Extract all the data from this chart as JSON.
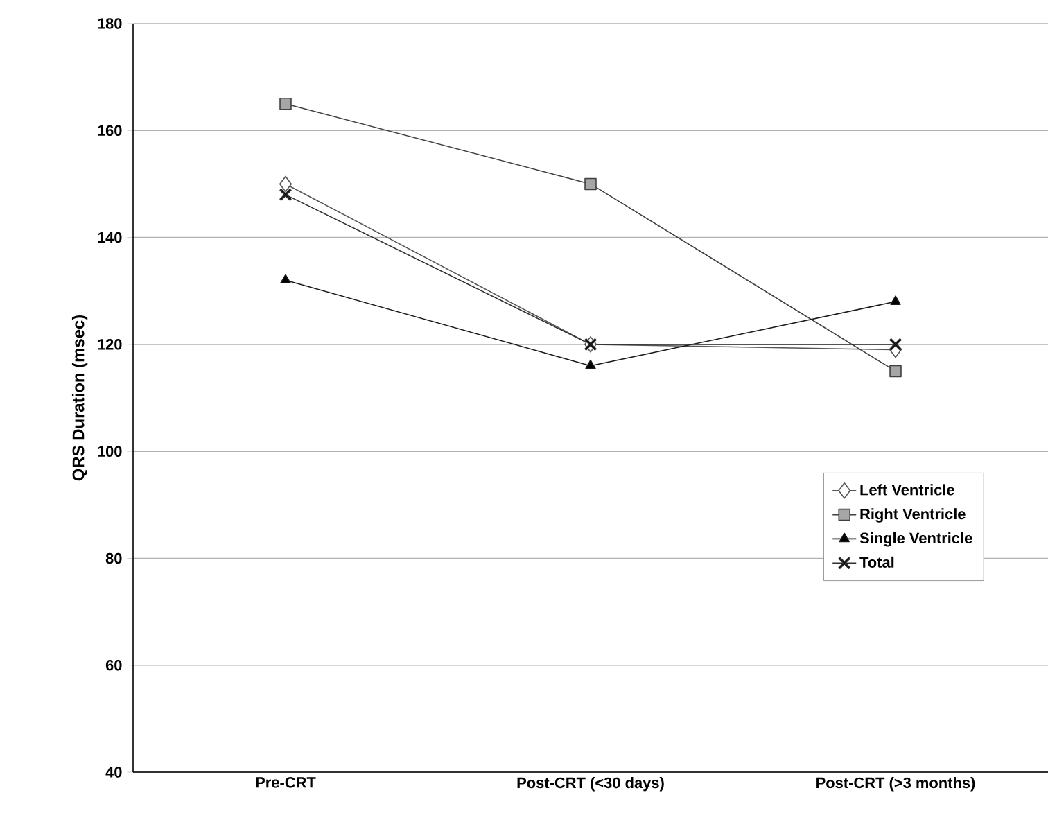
{
  "chart_data": {
    "type": "line",
    "ylabel": "QRS Duration (msec)",
    "categories": [
      "Pre-CRT",
      "Post-CRT (<30 days)",
      "Post-CRT (>3 months)"
    ],
    "series": [
      {
        "name": "Left Ventricle",
        "color": "#555555",
        "marker": "diamond",
        "values": [
          150,
          120,
          119
        ]
      },
      {
        "name": "Right Ventricle",
        "color": "#404040",
        "marker": "square",
        "values": [
          165,
          150,
          115
        ]
      },
      {
        "name": "Single Ventricle",
        "color": "#1a1a1a",
        "marker": "triangle",
        "values": [
          132,
          116,
          128
        ]
      },
      {
        "name": "Total",
        "color": "#2e2e2e",
        "marker": "cross",
        "values": [
          148,
          120,
          120
        ]
      }
    ],
    "ylim": [
      40,
      180
    ],
    "yticks": [
      40,
      60,
      80,
      100,
      120,
      140,
      160,
      180
    ],
    "grid": "y",
    "legend": "right"
  }
}
